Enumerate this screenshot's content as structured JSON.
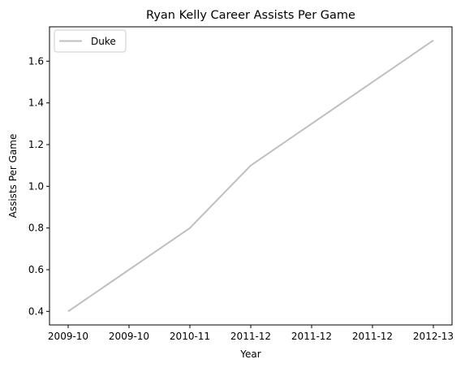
{
  "chart_data": {
    "type": "line",
    "title": "Ryan Kelly  Career Assists Per Game",
    "xlabel": "Year",
    "ylabel": "Assists Per Game",
    "x_tick_labels": [
      "2009-10",
      "2009-10",
      "2010-11",
      "2011-12",
      "2011-12",
      "2011-12",
      "2012-13"
    ],
    "points": [
      {
        "x": "2009-10",
        "y": 0.4
      },
      {
        "x": "2010-11",
        "y": 0.8
      },
      {
        "x": "2011-12",
        "y": 1.1
      },
      {
        "x": "2012-13",
        "y": 1.7
      }
    ],
    "series": [
      {
        "name": "Duke",
        "color": "#bfbfbf",
        "values": [
          0.4,
          0.8,
          1.1,
          1.7
        ]
      }
    ],
    "yticks": [
      0.4,
      0.6,
      0.8,
      1.0,
      1.2,
      1.4,
      1.6
    ],
    "ylim": [
      0.335,
      1.765
    ],
    "grid": false,
    "legend": "top-left"
  }
}
